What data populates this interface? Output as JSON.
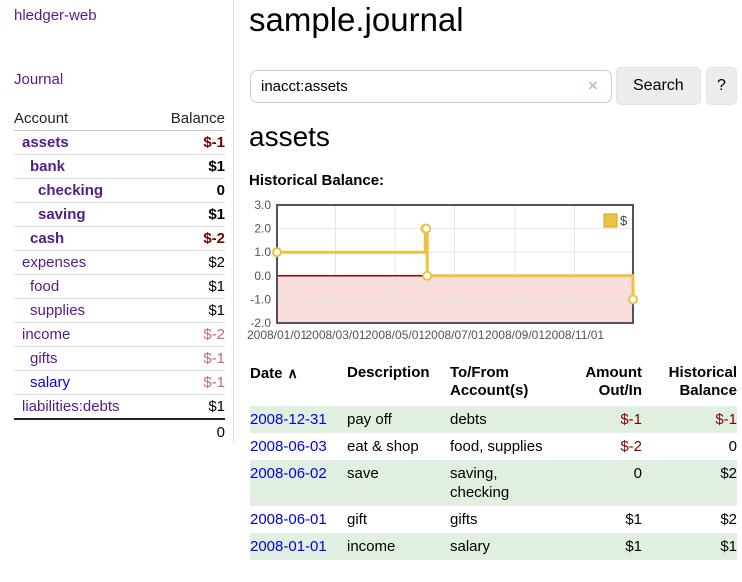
{
  "app": {
    "title": "hledger-web",
    "journal_link": "Journal"
  },
  "sidebar": {
    "header": {
      "account": "Account",
      "balance": "Balance"
    },
    "accounts": [
      {
        "name": "assets",
        "balance": "$-1"
      },
      {
        "name": "bank",
        "balance": "$1"
      },
      {
        "name": "checking",
        "balance": "0"
      },
      {
        "name": "saving",
        "balance": "$1"
      },
      {
        "name": "cash",
        "balance": "$-2"
      },
      {
        "name": "expenses",
        "balance": "$2"
      },
      {
        "name": "food",
        "balance": "$1"
      },
      {
        "name": "supplies",
        "balance": "$1"
      },
      {
        "name": "income",
        "balance": "$-2"
      },
      {
        "name": "gifts",
        "balance": "$-1"
      },
      {
        "name": "salary",
        "balance": "$-1"
      },
      {
        "name": "liabilities:debts",
        "balance": "$1"
      }
    ],
    "total": "0"
  },
  "main": {
    "title": "sample.journal",
    "search": {
      "value": "inacct:assets",
      "clear_icon": "×",
      "search_button": "Search",
      "help_button": "?"
    },
    "account_heading": "assets",
    "chart_title": "Historical Balance:"
  },
  "chart_data": {
    "type": "line",
    "step": true,
    "title": "Historical Balance:",
    "x_range": [
      "2008-01-01",
      "2008-12-31"
    ],
    "ylim": [
      -2,
      3
    ],
    "grid": true,
    "legend_position": "top-right",
    "negative_region_fill": "#fadddd",
    "zero_line_color": "#a00000",
    "y_ticks": [
      {
        "label": "3.0",
        "value": 3
      },
      {
        "label": "2.0",
        "value": 2
      },
      {
        "label": "1.0",
        "value": 1
      },
      {
        "label": "0.0",
        "value": 0
      },
      {
        "label": "-1.0",
        "value": -1
      },
      {
        "label": "-2.0",
        "value": -2
      }
    ],
    "x_ticks": [
      {
        "label": "2008/01/01",
        "date": "2008-01-01"
      },
      {
        "label": "2008/03/01",
        "date": "2008-03-01"
      },
      {
        "label": "2008/05/01",
        "date": "2008-05-01"
      },
      {
        "label": "2008/07/01",
        "date": "2008-07-01"
      },
      {
        "label": "2008/09/01",
        "date": "2008-09-01"
      },
      {
        "label": "2008/11/01",
        "date": "2008-11-01"
      }
    ],
    "series": [
      {
        "name": "$",
        "color": "#edc240",
        "points": [
          {
            "date": "2008-01-01",
            "value": 1
          },
          {
            "date": "2008-06-01",
            "value": 2
          },
          {
            "date": "2008-06-02",
            "value": 2
          },
          {
            "date": "2008-06-03",
            "value": 0
          },
          {
            "date": "2008-12-31",
            "value": -1
          }
        ]
      }
    ]
  },
  "register": {
    "headers": {
      "date": "Date",
      "sort_icon": "∧",
      "description": "Description",
      "accounts": "To/From\nAccount(s)",
      "amount": "Amount\nOut/In",
      "balance": "Historical\nBalance"
    },
    "rows": [
      {
        "date": "2008-12-31",
        "description": "pay off",
        "accounts": "debts",
        "amount": "$-1",
        "balance": "$-1"
      },
      {
        "date": "2008-06-03",
        "description": "eat & shop",
        "accounts": "food, supplies",
        "amount": "$-2",
        "balance": "0"
      },
      {
        "date": "2008-06-02",
        "description": "save",
        "accounts": "saving, checking",
        "amount": "0",
        "balance": "$2"
      },
      {
        "date": "2008-06-01",
        "description": "gift",
        "accounts": "gifts",
        "amount": "$1",
        "balance": "$2"
      },
      {
        "date": "2008-01-01",
        "description": "income",
        "accounts": "salary",
        "amount": "$1",
        "balance": "$1"
      }
    ]
  },
  "colors": {
    "link-purple": "#551a8b",
    "link-blue": "#0000e6",
    "neg-dark": "#800000",
    "neg-soft": "#c46b76",
    "row-green": "#e1efe0",
    "chart-gold": "#edc240",
    "chart-pink": "#fadddd",
    "chart-zero": "#a00000",
    "btn-bg": "#ececec",
    "border-light": "#dddddd"
  }
}
